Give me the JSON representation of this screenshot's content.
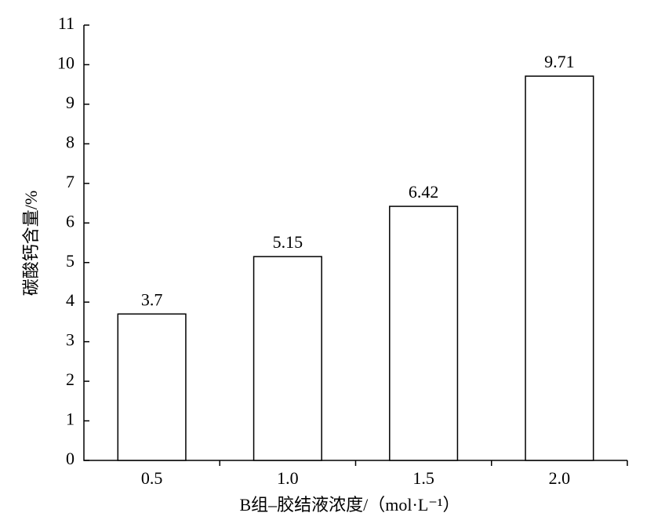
{
  "chart_data": {
    "type": "bar",
    "x_label": "B组–胶结液浓度/（mol·L⁻¹）",
    "y_label": "碳酸钙含量/%",
    "categories": [
      "0.5",
      "1.0",
      "1.5",
      "2.0"
    ],
    "values": [
      3.7,
      5.15,
      6.42,
      9.71
    ],
    "color": "#ffffff",
    "ylim": [
      0,
      11
    ],
    "yticks": [
      0,
      1,
      2,
      3,
      4,
      5,
      6,
      7,
      8,
      9,
      10,
      11
    ],
    "grid": false
  }
}
